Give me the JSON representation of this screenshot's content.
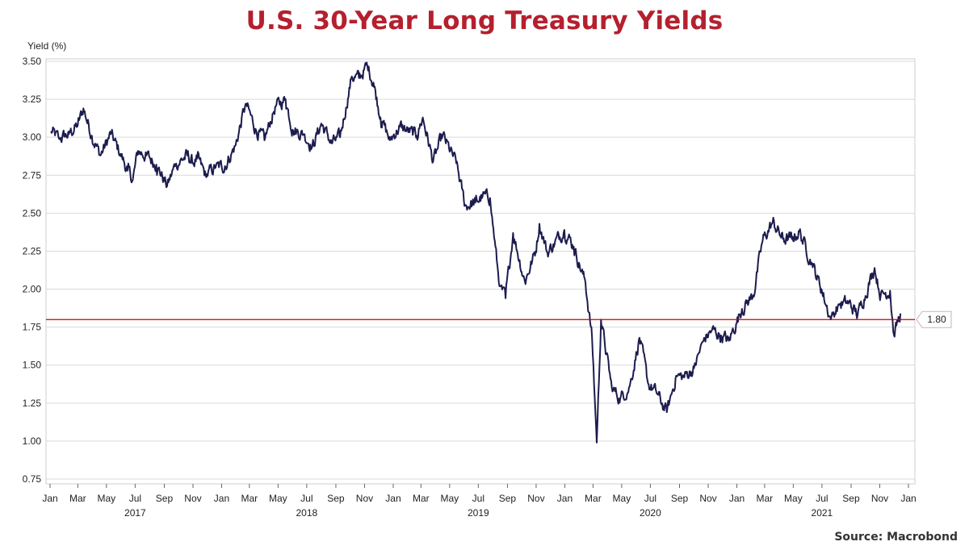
{
  "title": "U.S. 30-Year Long Treasury Yields",
  "source": "Source: Macrobond",
  "colors": {
    "title": "#b5202e",
    "line": "#1c1c4e",
    "reference": "#cc0000",
    "grid": "#d9d9d9"
  },
  "chart_data": {
    "type": "line",
    "title": "U.S. 30-Year Long Treasury Yields",
    "ylabel": "Yield (%)",
    "xlabel": "",
    "ylim": [
      0.75,
      3.5
    ],
    "y_ticks": [
      "3.50",
      "3.25",
      "3.00",
      "2.75",
      "2.50",
      "2.25",
      "2.00",
      "1.75",
      "1.50",
      "1.25",
      "1.00",
      "0.75"
    ],
    "x_range": [
      "2017-01-01",
      "2022-01-01"
    ],
    "x_tick_labels": [
      "Jan",
      "Mar",
      "May",
      "Jul",
      "Sep",
      "Nov",
      "Jan",
      "Mar",
      "May",
      "Jul",
      "Sep",
      "Nov",
      "Jan",
      "Mar",
      "May",
      "Jul",
      "Sep",
      "Nov",
      "Jan",
      "Mar",
      "May",
      "Jul",
      "Sep",
      "Nov",
      "Jan",
      "Mar",
      "May",
      "Jul",
      "Sep",
      "Nov",
      "Jan"
    ],
    "year_labels": [
      "2017",
      "2018",
      "2019",
      "2020",
      "2021"
    ],
    "reference_line": {
      "value": 1.8,
      "label": "1.80"
    },
    "grid": true,
    "series": [
      {
        "points": [
          [
            "2017-01-03",
            3.04
          ],
          [
            "2017-01-20",
            2.99
          ],
          [
            "2017-02-10",
            3.02
          ],
          [
            "2017-03-01",
            3.08
          ],
          [
            "2017-03-13",
            3.19
          ],
          [
            "2017-03-31",
            3.01
          ],
          [
            "2017-04-18",
            2.88
          ],
          [
            "2017-05-10",
            3.02
          ],
          [
            "2017-05-31",
            2.89
          ],
          [
            "2017-06-15",
            2.78
          ],
          [
            "2017-06-26",
            2.72
          ],
          [
            "2017-07-07",
            2.91
          ],
          [
            "2017-07-25",
            2.88
          ],
          [
            "2017-08-15",
            2.82
          ],
          [
            "2017-09-07",
            2.68
          ],
          [
            "2017-09-25",
            2.82
          ],
          [
            "2017-10-20",
            2.88
          ],
          [
            "2017-11-01",
            2.83
          ],
          [
            "2017-11-10",
            2.86
          ],
          [
            "2017-11-28",
            2.75
          ],
          [
            "2017-12-19",
            2.8
          ],
          [
            "2018-01-08",
            2.81
          ],
          [
            "2018-01-31",
            2.95
          ],
          [
            "2018-02-21",
            3.22
          ],
          [
            "2018-03-15",
            3.05
          ],
          [
            "2018-04-02",
            2.98
          ],
          [
            "2018-04-25",
            3.2
          ],
          [
            "2018-05-17",
            3.25
          ],
          [
            "2018-06-01",
            3.05
          ],
          [
            "2018-06-25",
            3.02
          ],
          [
            "2018-07-13",
            2.94
          ],
          [
            "2018-08-01",
            3.09
          ],
          [
            "2018-08-23",
            2.96
          ],
          [
            "2018-09-10",
            3.0
          ],
          [
            "2018-10-05",
            3.4
          ],
          [
            "2018-10-20",
            3.39
          ],
          [
            "2018-11-07",
            3.47
          ],
          [
            "2018-11-20",
            3.36
          ],
          [
            "2018-12-05",
            3.13
          ],
          [
            "2018-12-25",
            2.98
          ],
          [
            "2019-01-15",
            3.07
          ],
          [
            "2019-02-20",
            3.01
          ],
          [
            "2019-03-05",
            3.13
          ],
          [
            "2019-03-27",
            2.84
          ],
          [
            "2019-04-16",
            3.01
          ],
          [
            "2019-05-15",
            2.83
          ],
          [
            "2019-06-03",
            2.55
          ],
          [
            "2019-06-25",
            2.57
          ],
          [
            "2019-07-10",
            2.61
          ],
          [
            "2019-07-26",
            2.6
          ],
          [
            "2019-08-15",
            2.02
          ],
          [
            "2019-08-28",
            1.94
          ],
          [
            "2019-09-13",
            2.37
          ],
          [
            "2019-10-08",
            2.05
          ],
          [
            "2019-10-31",
            2.25
          ],
          [
            "2019-11-08",
            2.43
          ],
          [
            "2019-11-25",
            2.24
          ],
          [
            "2019-12-31",
            2.39
          ],
          [
            "2020-01-20",
            2.28
          ],
          [
            "2020-02-14",
            2.04
          ],
          [
            "2020-02-28",
            1.68
          ],
          [
            "2020-03-09",
            0.99
          ],
          [
            "2020-03-18",
            1.8
          ],
          [
            "2020-04-10",
            1.35
          ],
          [
            "2020-04-28",
            1.28
          ],
          [
            "2020-05-18",
            1.36
          ],
          [
            "2020-06-08",
            1.68
          ],
          [
            "2020-06-26",
            1.38
          ],
          [
            "2020-07-15",
            1.31
          ],
          [
            "2020-08-05",
            1.19
          ],
          [
            "2020-08-25",
            1.43
          ],
          [
            "2020-09-10",
            1.42
          ],
          [
            "2020-10-02",
            1.48
          ],
          [
            "2020-10-22",
            1.66
          ],
          [
            "2020-11-09",
            1.73
          ],
          [
            "2020-12-15",
            1.66
          ],
          [
            "2021-01-12",
            1.87
          ],
          [
            "2021-02-05",
            1.96
          ],
          [
            "2021-02-25",
            2.32
          ],
          [
            "2021-03-18",
            2.44
          ],
          [
            "2021-04-09",
            2.33
          ],
          [
            "2021-04-28",
            2.33
          ],
          [
            "2021-05-14",
            2.38
          ],
          [
            "2021-06-10",
            2.17
          ],
          [
            "2021-06-30",
            2.0
          ],
          [
            "2021-07-20",
            1.8
          ],
          [
            "2021-08-05",
            1.9
          ],
          [
            "2021-08-27",
            1.91
          ],
          [
            "2021-09-15",
            1.83
          ],
          [
            "2021-10-21",
            2.14
          ],
          [
            "2021-11-03",
            1.96
          ],
          [
            "2021-11-23",
            1.99
          ],
          [
            "2021-12-01",
            1.7
          ],
          [
            "2021-12-15",
            1.84
          ]
        ]
      }
    ]
  }
}
